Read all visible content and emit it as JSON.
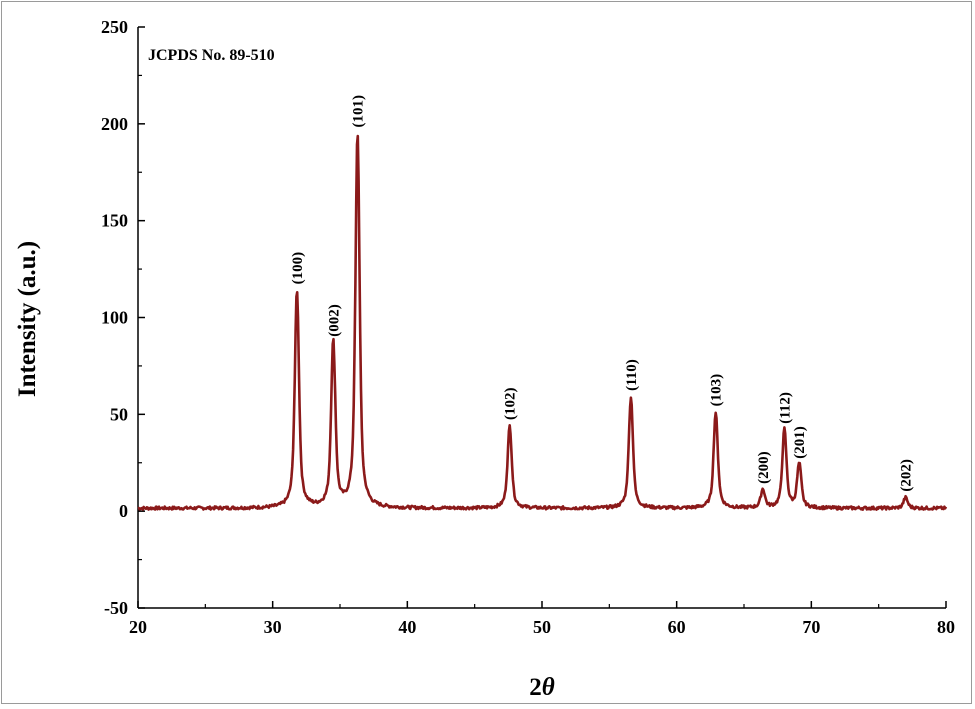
{
  "chart_data": {
    "type": "line",
    "title": "",
    "xlabel": "2θ",
    "xlabel_main": "2",
    "xlabel_symbol": "θ",
    "ylabel": "Intensity (a.u.)",
    "xlim": [
      20,
      80
    ],
    "ylim": [
      -50,
      250
    ],
    "xticks": [
      20,
      30,
      40,
      50,
      60,
      70,
      80
    ],
    "yticks": [
      -50,
      0,
      50,
      100,
      150,
      200,
      250
    ],
    "grid": false,
    "legend": "none",
    "annotation": "JCPDS No. 89-510",
    "line_color": "#8b1a1a",
    "baseline": 1.5,
    "peaks": [
      {
        "label": "(100)",
        "x": 31.8,
        "y": 114
      },
      {
        "label": "(002)",
        "x": 34.5,
        "y": 87
      },
      {
        "label": "(101)",
        "x": 36.3,
        "y": 195
      },
      {
        "label": "(102)",
        "x": 47.6,
        "y": 44
      },
      {
        "label": "(110)",
        "x": 56.6,
        "y": 59
      },
      {
        "label": "(103)",
        "x": 62.9,
        "y": 51
      },
      {
        "label": "(200)",
        "x": 66.4,
        "y": 11
      },
      {
        "label": "(112)",
        "x": 68.0,
        "y": 42
      },
      {
        "label": "(201)",
        "x": 69.1,
        "y": 24
      },
      {
        "label": "(202)",
        "x": 77.0,
        "y": 7
      }
    ]
  }
}
